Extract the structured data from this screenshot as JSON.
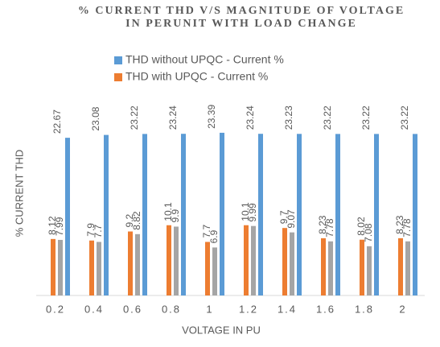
{
  "chart_data": {
    "type": "bar",
    "title": "% CURRENT THD V/S MAGNITUDE OF VOLTAGE IN PERUNIT WITH LOAD CHANGE",
    "x_label": "VOLTAGE IN PU",
    "y_label": "% CURRENT THD",
    "categories": [
      "0.2",
      "0.4",
      "0.6",
      "0.8",
      "1",
      "1.2",
      "1.4",
      "1.6",
      "1.8",
      "2"
    ],
    "series": [
      {
        "name": "THD without UPQC - Current %",
        "color": "#5b9bd5",
        "values": [
          22.67,
          23.08,
          23.22,
          23.24,
          23.39,
          23.24,
          23.23,
          23.22,
          23.22,
          23.22
        ]
      },
      {
        "name": "THD with UPQC - Current %",
        "color": "#ed7d31",
        "values": [
          8.12,
          7.9,
          9.2,
          10.1,
          7.7,
          10.1,
          9.7,
          8.23,
          8.02,
          8.23
        ]
      },
      {
        "color": "#a5a5a5",
        "values": [
          7.99,
          7.7,
          8.82,
          9.9,
          6.9,
          9.99,
          9.07,
          7.78,
          7.08,
          7.78
        ]
      }
    ],
    "ylim": [
      0,
      25
    ],
    "legend": "top"
  }
}
